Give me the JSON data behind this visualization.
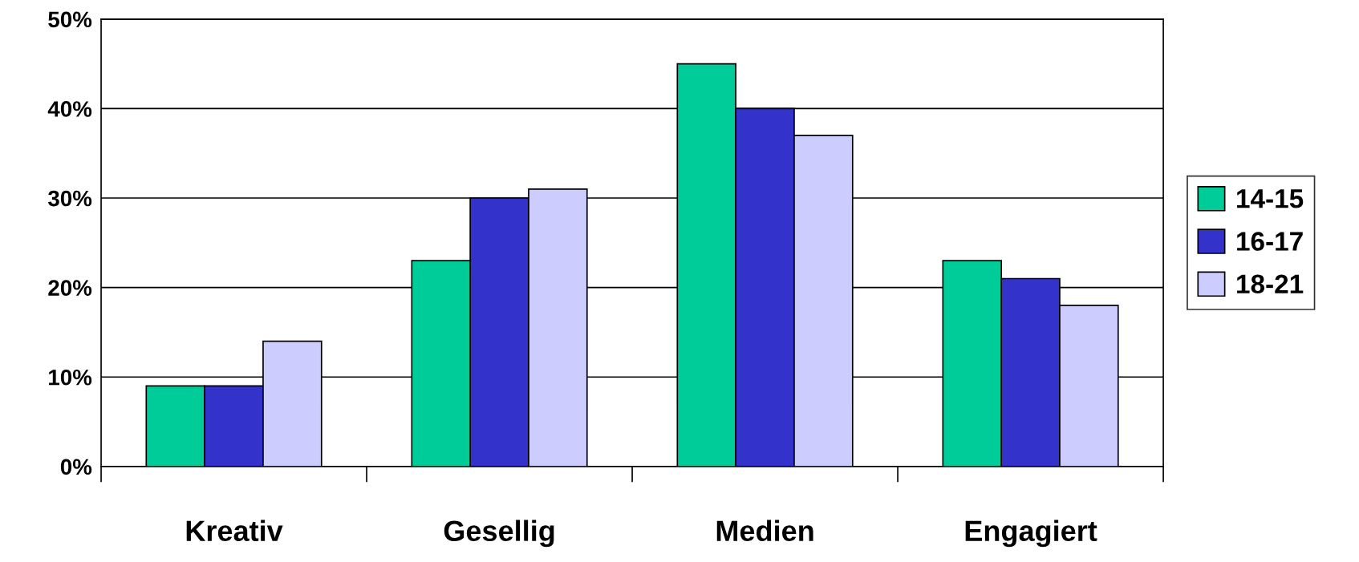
{
  "chart_data": {
    "type": "bar",
    "categories": [
      "Kreativ",
      "Gesellig",
      "Medien",
      "Engagiert"
    ],
    "series": [
      {
        "name": "14-15",
        "color": "#00cc99",
        "values": [
          9,
          23,
          45,
          23
        ]
      },
      {
        "name": "16-17",
        "color": "#3333cc",
        "values": [
          9,
          30,
          40,
          21
        ]
      },
      {
        "name": "18-21",
        "color": "#ccccff",
        "values": [
          14,
          31,
          37,
          18
        ]
      }
    ],
    "ylim": [
      0,
      50
    ],
    "yticks": [
      {
        "value": 0,
        "label": "0%"
      },
      {
        "value": 10,
        "label": "10%"
      },
      {
        "value": 20,
        "label": "20%"
      },
      {
        "value": 30,
        "label": "30%"
      },
      {
        "value": 40,
        "label": "40%"
      },
      {
        "value": 50,
        "label": "50%"
      }
    ],
    "grid": "y",
    "legend": "right"
  }
}
